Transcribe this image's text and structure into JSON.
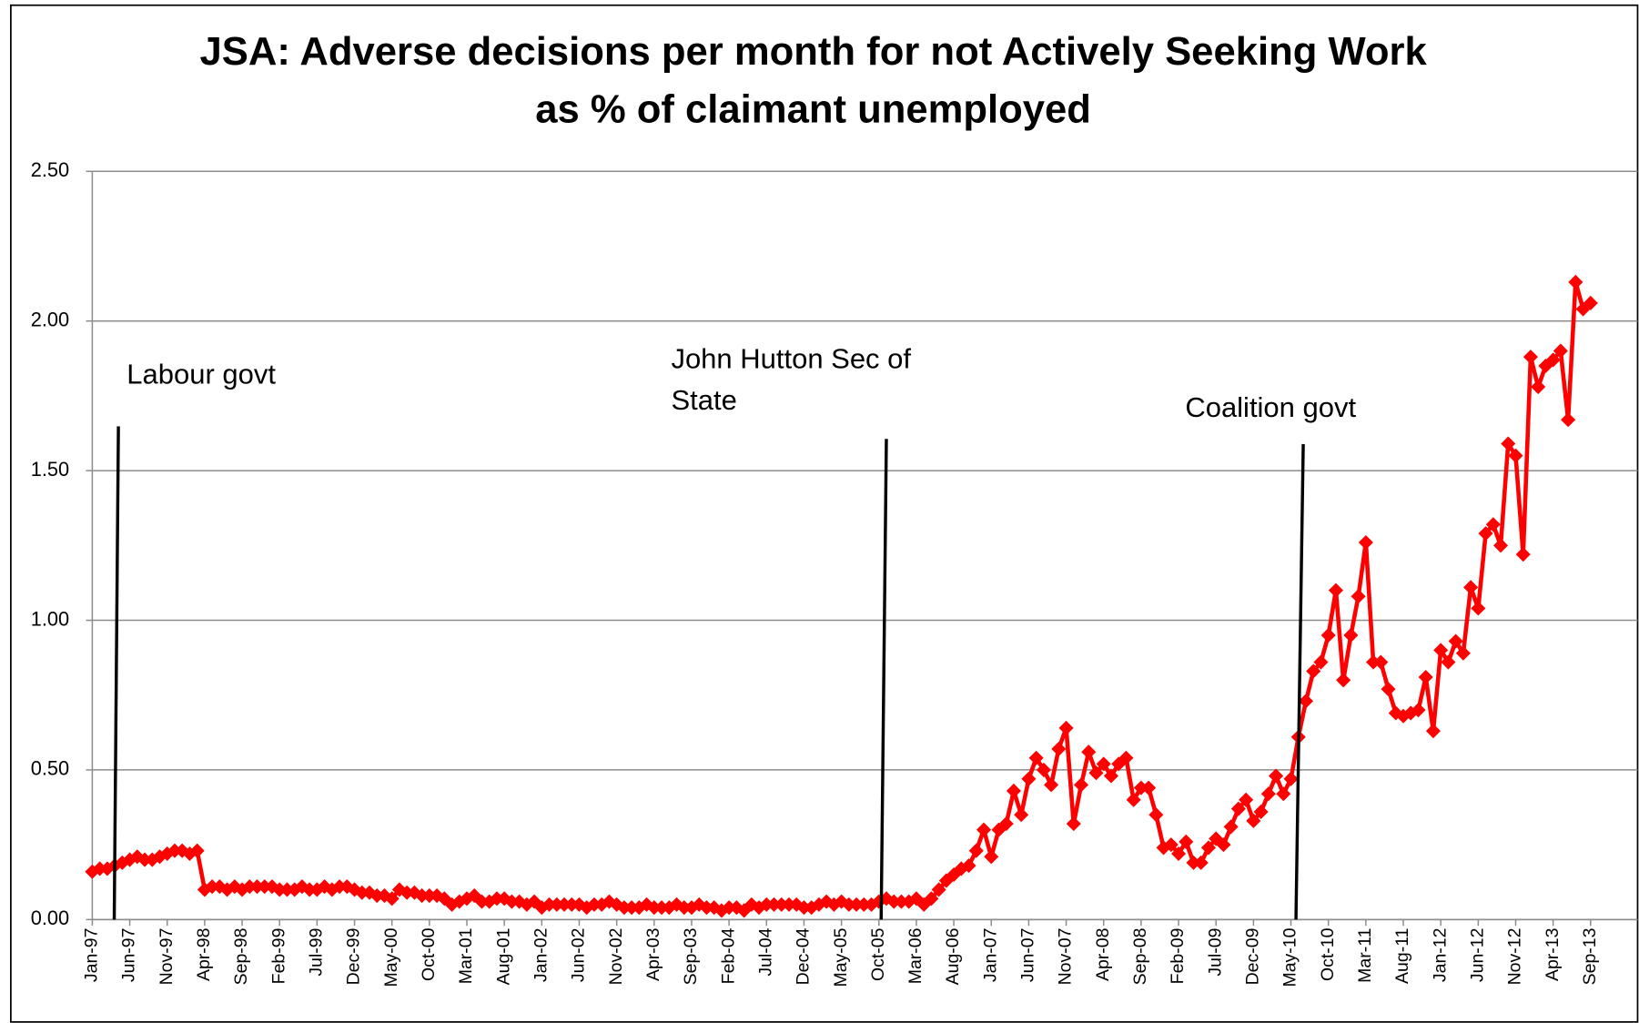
{
  "chart_data": {
    "type": "line",
    "title": [
      "JSA:  Adverse decisions per month for not Actively Seeking Work",
      "as % of claimant unemployed"
    ],
    "annotations": [
      {
        "text": [
          "Labour govt"
        ]
      },
      {
        "text": [
          "John Hutton Sec of",
          "State"
        ]
      },
      {
        "text": [
          "Coalition govt"
        ]
      }
    ],
    "color": "#ff0000",
    "grid": true,
    "ylim": [
      0,
      2.5
    ],
    "yticks": [
      {
        "value": 0,
        "label": "0.00"
      },
      {
        "value": 0.5,
        "label": "0.50"
      },
      {
        "value": 1,
        "label": "1.00"
      },
      {
        "value": 1.5,
        "label": "1.50"
      },
      {
        "value": 2,
        "label": "2.00"
      },
      {
        "value": 2.5,
        "label": "2.50"
      }
    ],
    "categories": [
      "Jan-97",
      null,
      null,
      null,
      null,
      "Jun-97",
      null,
      null,
      null,
      null,
      "Nov-97",
      null,
      null,
      null,
      null,
      "Apr-98",
      null,
      null,
      null,
      null,
      "Sep-98",
      null,
      null,
      null,
      null,
      "Feb-99",
      null,
      null,
      null,
      null,
      "Jul-99",
      null,
      null,
      null,
      null,
      "Dec-99",
      null,
      null,
      null,
      null,
      "May-00",
      null,
      null,
      null,
      null,
      "Oct-00",
      null,
      null,
      null,
      null,
      "Mar-01",
      null,
      null,
      null,
      null,
      "Aug-01",
      null,
      null,
      null,
      null,
      "Jan-02",
      null,
      null,
      null,
      null,
      "Jun-02",
      null,
      null,
      null,
      null,
      "Nov-02",
      null,
      null,
      null,
      null,
      "Apr-03",
      null,
      null,
      null,
      null,
      "Sep-03",
      null,
      null,
      null,
      null,
      "Feb-04",
      null,
      null,
      null,
      null,
      "Jul-04",
      null,
      null,
      null,
      null,
      "Dec-04",
      null,
      null,
      null,
      null,
      "May-05",
      null,
      null,
      null,
      null,
      "Oct-05",
      null,
      null,
      null,
      null,
      "Mar-06",
      null,
      null,
      null,
      null,
      "Aug-06",
      null,
      null,
      null,
      null,
      "Jan-07",
      null,
      null,
      null,
      null,
      "Jun-07",
      null,
      null,
      null,
      null,
      "Nov-07",
      null,
      null,
      null,
      null,
      "Apr-08",
      null,
      null,
      null,
      null,
      "Sep-08",
      null,
      null,
      null,
      null,
      "Feb-09",
      null,
      null,
      null,
      null,
      "Jul-09",
      null,
      null,
      null,
      null,
      "Dec-09",
      null,
      null,
      null,
      null,
      "May-10",
      null,
      null,
      null,
      null,
      "Oct-10",
      null,
      null,
      null,
      null,
      "Mar-11",
      null,
      null,
      null,
      null,
      "Aug-11",
      null,
      null,
      null,
      null,
      "Jan-12",
      null,
      null,
      null,
      null,
      "Jun-12",
      null,
      null,
      null,
      null,
      "Nov-12",
      null,
      null,
      null,
      null,
      "Apr-13",
      null,
      null,
      null,
      null,
      "Sep-13"
    ],
    "values": [
      0.16,
      0.17,
      0.17,
      0.18,
      0.19,
      0.2,
      0.21,
      0.2,
      0.2,
      0.21,
      0.22,
      0.23,
      0.23,
      0.22,
      0.23,
      0.1,
      0.11,
      0.11,
      0.1,
      0.11,
      0.1,
      0.11,
      0.11,
      0.11,
      0.11,
      0.1,
      0.1,
      0.1,
      0.11,
      0.1,
      0.1,
      0.11,
      0.1,
      0.11,
      0.11,
      0.1,
      0.09,
      0.09,
      0.08,
      0.08,
      0.07,
      0.1,
      0.09,
      0.09,
      0.08,
      0.08,
      0.08,
      0.07,
      0.05,
      0.06,
      0.07,
      0.08,
      0.06,
      0.06,
      0.07,
      0.07,
      0.06,
      0.06,
      0.05,
      0.06,
      0.04,
      0.05,
      0.05,
      0.05,
      0.05,
      0.05,
      0.04,
      0.05,
      0.05,
      0.06,
      0.05,
      0.04,
      0.04,
      0.04,
      0.05,
      0.04,
      0.04,
      0.04,
      0.05,
      0.04,
      0.04,
      0.05,
      0.04,
      0.04,
      0.03,
      0.04,
      0.04,
      0.03,
      0.05,
      0.04,
      0.05,
      0.05,
      0.05,
      0.05,
      0.05,
      0.04,
      0.04,
      0.05,
      0.06,
      0.05,
      0.06,
      0.05,
      0.05,
      0.05,
      0.05,
      0.06,
      0.07,
      0.06,
      0.06,
      0.06,
      0.07,
      0.05,
      0.07,
      0.1,
      0.13,
      0.15,
      0.17,
      0.18,
      0.23,
      0.3,
      0.21,
      0.3,
      0.32,
      0.43,
      0.35,
      0.47,
      0.54,
      0.5,
      0.45,
      0.57,
      0.64,
      0.32,
      0.45,
      0.56,
      0.49,
      0.52,
      0.48,
      0.52,
      0.54,
      0.4,
      0.44,
      0.44,
      0.35,
      0.24,
      0.25,
      0.22,
      0.26,
      0.19,
      0.19,
      0.24,
      0.27,
      0.25,
      0.31,
      0.37,
      0.4,
      0.33,
      0.36,
      0.42,
      0.48,
      0.42,
      0.47,
      0.61,
      0.73,
      0.83,
      0.86,
      0.95,
      1.1,
      0.8,
      0.95,
      1.08,
      1.26,
      0.86,
      0.86,
      0.77,
      0.69,
      0.68,
      0.69,
      0.7,
      0.81,
      0.63,
      0.9,
      0.86,
      0.93,
      0.89,
      1.11,
      1.04,
      1.29,
      1.32,
      1.25,
      1.59,
      1.55,
      1.22,
      1.88,
      1.78,
      1.85,
      1.87,
      1.9,
      1.67,
      2.13,
      2.04,
      2.06
    ]
  }
}
